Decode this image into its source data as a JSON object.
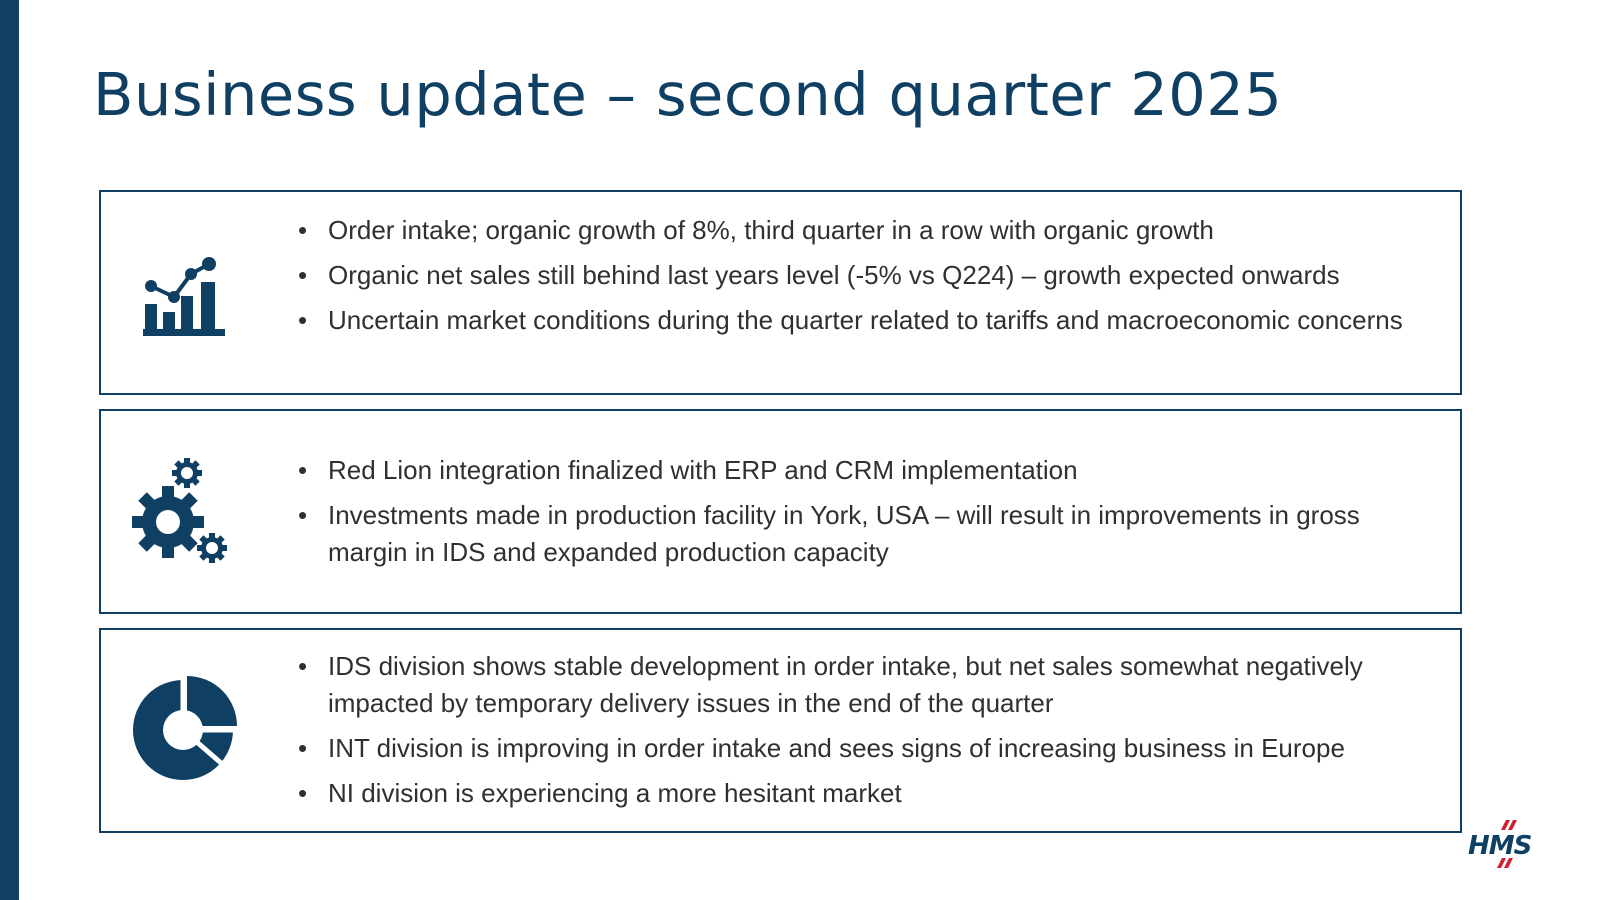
{
  "slide": {
    "title": "Business update – second quarter 2025"
  },
  "panels": [
    {
      "icon": "growth-chart-icon",
      "bullets": [
        "Order intake; organic growth of 8%, third quarter in a row with organic growth",
        "Organic net sales still behind last years level (-5% vs Q224) – growth expected onwards",
        "Uncertain market conditions during the quarter related to tariffs and macroeconomic concerns"
      ]
    },
    {
      "icon": "gears-icon",
      "bullets": [
        "Red Lion integration finalized with ERP and CRM implementation",
        "Investments made in production facility in York, USA – will result in improvements in gross margin in IDS and expanded production capacity"
      ]
    },
    {
      "icon": "donut-chart-icon",
      "bullets": [
        "IDS division shows stable development in order intake, but net sales somewhat negatively impacted by temporary delivery issues in the end of the quarter",
        "INT division is improving in order intake and sees signs of increasing business in Europe",
        "NI division is experiencing a more hesitant market"
      ]
    }
  ],
  "logo": {
    "text": "HMS",
    "icon": "hms-logo-icon"
  },
  "colors": {
    "primary": "#0f3f62",
    "text": "#303030",
    "logo_red": "#d0202e"
  }
}
